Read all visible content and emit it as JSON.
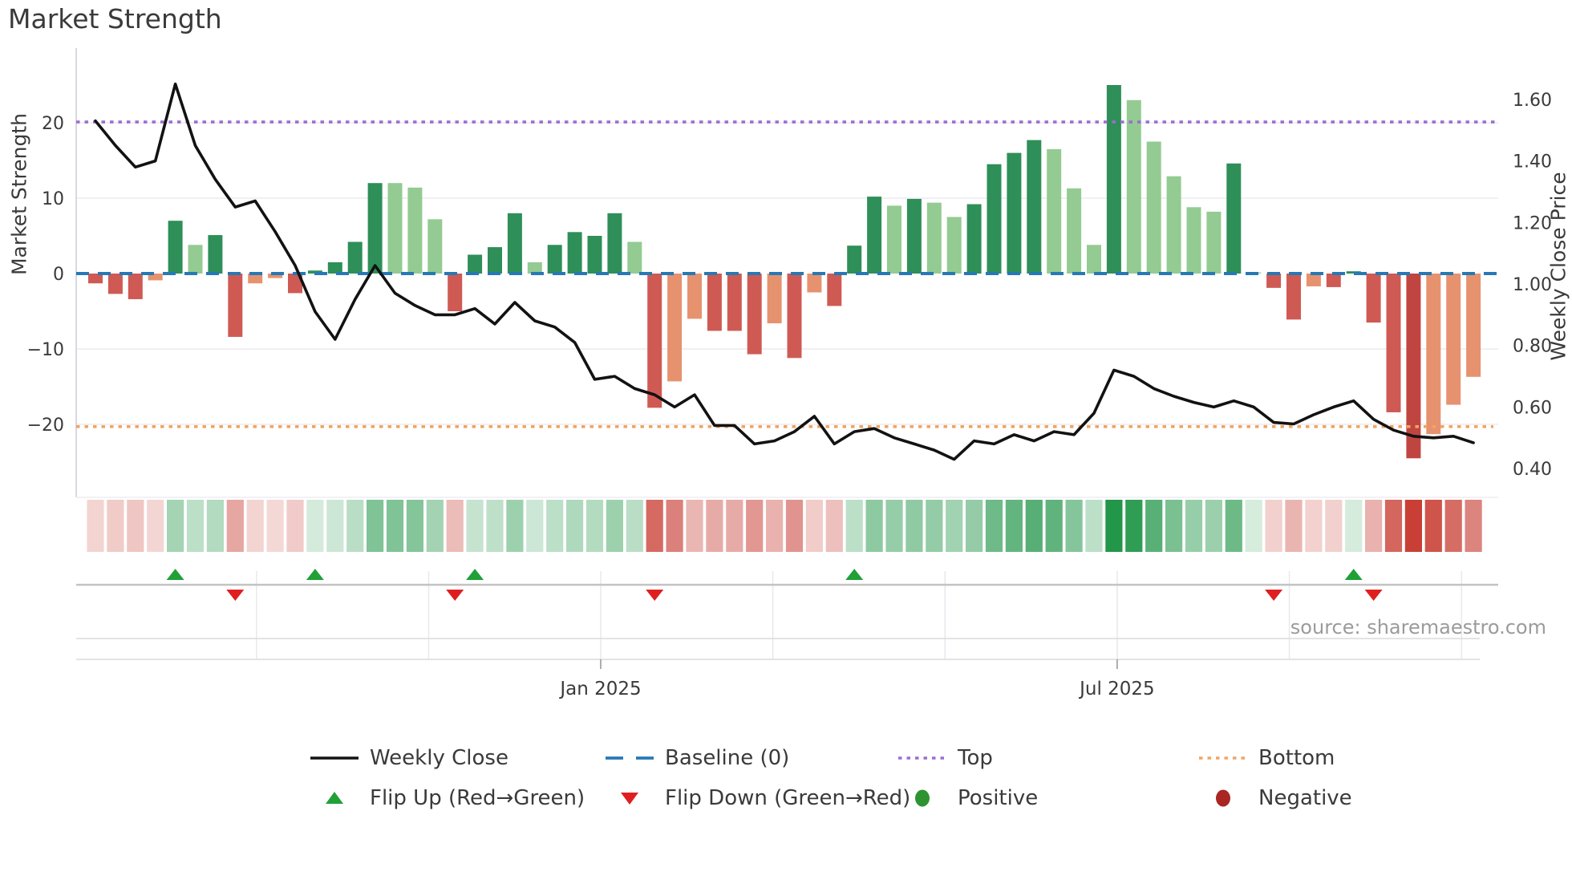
{
  "title": "Market Strength",
  "source": "source: sharemaestro.com",
  "colors": {
    "bar_dark_green": "#2e8f58",
    "bar_light_green": "#93cb92",
    "bar_red": "#cf5a54",
    "bar_salmon": "#e6926f",
    "bar_deep_red": "#c04540",
    "baseline_blue": "#2779b5",
    "top_purple": "#9a6fd0",
    "bottom_orange": "#f2a45f",
    "price_line_black": "#121212",
    "flip_up_green": "#21a038",
    "flip_down_red": "#df1f1f",
    "positive_dot_green": "#2e9431",
    "negative_dot_red": "#a92622",
    "heat_green_base": "#229649",
    "heat_red_base": "#c83c32",
    "grid_gray": "#ebebf2",
    "spine_gray": "#cfcfd8",
    "tick_text": "#3a3a3a"
  },
  "axes": {
    "left": {
      "label": "Market Strength",
      "ticks": [
        {
          "label": "20",
          "v": 20
        },
        {
          "label": "10",
          "v": 10
        },
        {
          "label": "0",
          "v": 0
        },
        {
          "label": "−10",
          "v": -10
        },
        {
          "label": "−20",
          "v": -20
        }
      ]
    },
    "right": {
      "label": "Weekly Close Price",
      "ticks": [
        {
          "label": "1.60",
          "v": 1.6
        },
        {
          "label": "1.40",
          "v": 1.4
        },
        {
          "label": "1.20",
          "v": 1.2
        },
        {
          "label": "1.00",
          "v": 1.0
        },
        {
          "label": "0.80",
          "v": 0.8
        },
        {
          "label": "0.60",
          "v": 0.6
        },
        {
          "label": "0.40",
          "v": 0.4
        }
      ]
    },
    "x": {
      "ticks": [
        {
          "label": "Jan 2025",
          "i": 25.3
        },
        {
          "label": "Jul 2025",
          "i": 51.16
        }
      ]
    }
  },
  "legend": {
    "rows": [
      [
        {
          "swatch": "line-black",
          "label": "Weekly Close"
        },
        {
          "swatch": "dash-blue",
          "label": "Baseline (0)"
        },
        {
          "swatch": "dot-purple",
          "label": "Top"
        },
        {
          "swatch": "dot-orange",
          "label": "Bottom"
        }
      ],
      [
        {
          "swatch": "tri-up",
          "label": "Flip Up (Red→Green)"
        },
        {
          "swatch": "tri-down",
          "label": "Flip Down (Green→Red)"
        },
        {
          "swatch": "dot-green",
          "label": "Positive"
        },
        {
          "swatch": "dot-darkred",
          "label": "Negative"
        }
      ]
    ]
  },
  "chart_data": {
    "type": "bar+line",
    "title": "Market Strength",
    "left_axis_range": [
      -29.9,
      29.9
    ],
    "right_axis_range": [
      0.31,
      1.77
    ],
    "baseline": 0,
    "top_line": 20.1,
    "bottom_line": -20.3,
    "strength_bars": [
      [
        -1.3,
        "rd"
      ],
      [
        -2.7,
        "rd"
      ],
      [
        -3.4,
        "rd"
      ],
      [
        -0.9,
        "sl"
      ],
      [
        7.0,
        "dg"
      ],
      [
        3.8,
        "lg"
      ],
      [
        5.1,
        "dg"
      ],
      [
        -8.4,
        "rd"
      ],
      [
        -1.3,
        "sl"
      ],
      [
        -0.6,
        "sl"
      ],
      [
        -2.6,
        "rd"
      ],
      [
        0.4,
        "dg"
      ],
      [
        1.5,
        "dg"
      ],
      [
        4.2,
        "dg"
      ],
      [
        12.0,
        "dg"
      ],
      [
        12.0,
        "lg"
      ],
      [
        11.4,
        "lg"
      ],
      [
        7.2,
        "lg"
      ],
      [
        -5.0,
        "rd"
      ],
      [
        2.5,
        "dg"
      ],
      [
        3.5,
        "dg"
      ],
      [
        8.0,
        "dg"
      ],
      [
        1.5,
        "lg"
      ],
      [
        3.8,
        "dg"
      ],
      [
        5.5,
        "dg"
      ],
      [
        5.0,
        "dg"
      ],
      [
        8.0,
        "dg"
      ],
      [
        4.2,
        "lg"
      ],
      [
        -17.8,
        "rd"
      ],
      [
        -14.3,
        "sl"
      ],
      [
        -6.0,
        "sl"
      ],
      [
        -7.6,
        "rd"
      ],
      [
        -7.6,
        "rd"
      ],
      [
        -10.7,
        "rd"
      ],
      [
        -6.6,
        "sl"
      ],
      [
        -11.2,
        "rd"
      ],
      [
        -2.5,
        "sl"
      ],
      [
        -4.3,
        "rd"
      ],
      [
        3.7,
        "dg"
      ],
      [
        10.2,
        "dg"
      ],
      [
        9.0,
        "lg"
      ],
      [
        9.9,
        "dg"
      ],
      [
        9.4,
        "lg"
      ],
      [
        7.5,
        "lg"
      ],
      [
        9.2,
        "dg"
      ],
      [
        14.5,
        "dg"
      ],
      [
        16.0,
        "dg"
      ],
      [
        17.7,
        "dg"
      ],
      [
        16.5,
        "lg"
      ],
      [
        11.3,
        "lg"
      ],
      [
        3.8,
        "lg"
      ],
      [
        25.0,
        "dg"
      ],
      [
        23.0,
        "lg"
      ],
      [
        17.5,
        "lg"
      ],
      [
        12.9,
        "lg"
      ],
      [
        8.8,
        "lg"
      ],
      [
        8.2,
        "lg"
      ],
      [
        14.6,
        "dg"
      ],
      [
        0.15,
        "lg"
      ],
      [
        -1.9,
        "rd"
      ],
      [
        -6.1,
        "rd"
      ],
      [
        -1.7,
        "sl"
      ],
      [
        -1.8,
        "rd"
      ],
      [
        0.3,
        "dg"
      ],
      [
        -6.5,
        "rd"
      ],
      [
        -18.4,
        "rd"
      ],
      [
        -24.5,
        "dr"
      ],
      [
        -21.3,
        "sl"
      ],
      [
        -17.4,
        "sl"
      ],
      [
        -13.7,
        "sl"
      ]
    ],
    "weekly_close": [
      1.53,
      1.45,
      1.38,
      1.4,
      1.65,
      1.45,
      1.34,
      1.25,
      1.27,
      1.17,
      1.06,
      0.91,
      0.82,
      0.95,
      1.06,
      0.97,
      0.93,
      0.9,
      0.9,
      0.92,
      0.87,
      0.94,
      0.88,
      0.86,
      0.81,
      0.69,
      0.7,
      0.66,
      0.64,
      0.6,
      0.64,
      0.54,
      0.54,
      0.48,
      0.49,
      0.52,
      0.57,
      0.48,
      0.52,
      0.53,
      0.5,
      0.48,
      0.46,
      0.43,
      0.49,
      0.48,
      0.51,
      0.49,
      0.52,
      0.51,
      0.58,
      0.72,
      0.7,
      0.66,
      0.635,
      0.615,
      0.6,
      0.62,
      0.6,
      0.55,
      0.545,
      0.575,
      0.6,
      0.62,
      0.56,
      0.525,
      0.505,
      0.5,
      0.505,
      0.484
    ],
    "flip_up_weeks": [
      4,
      11,
      19,
      38,
      63
    ],
    "flip_down_weeks": [
      7,
      18,
      28,
      59,
      64
    ]
  }
}
